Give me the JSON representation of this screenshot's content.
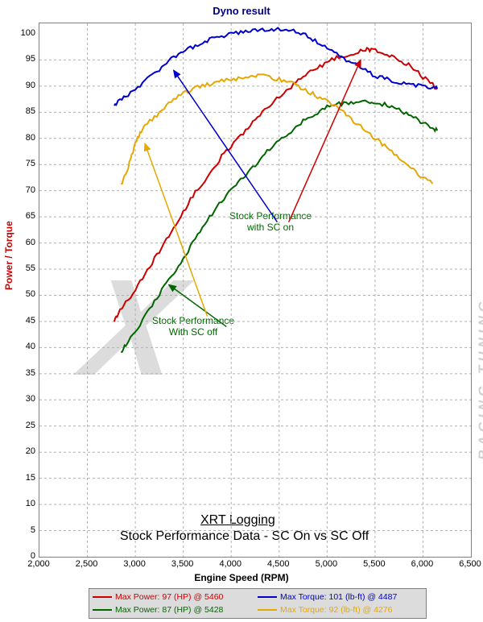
{
  "title": "Dyno result",
  "y_axis_label": "Power / Torque",
  "x_axis_label": "Engine Speed (RPM)",
  "plot": {
    "xlim": [
      2000,
      6500
    ],
    "ylim": [
      0,
      102
    ],
    "x_ticks": [
      2000,
      2500,
      3000,
      3500,
      4000,
      4500,
      5000,
      5500,
      6000,
      6500
    ],
    "x_tick_labels": [
      "2,000",
      "2,500",
      "3,000",
      "3,500",
      "4,000",
      "4,500",
      "5,000",
      "5,500",
      "6,000",
      "6,500"
    ],
    "y_ticks": [
      0,
      5,
      10,
      15,
      20,
      25,
      30,
      35,
      40,
      45,
      50,
      55,
      60,
      65,
      70,
      75,
      80,
      85,
      90,
      95,
      100
    ],
    "background_color": "#ffffff",
    "grid_color": "#b0b0b0",
    "border_color": "#808080"
  },
  "watermark_side": "RACING TUNING",
  "series": {
    "red_power_sc_on": {
      "label": "Max Power: 97 (HP) @ 5460",
      "color": "#cc0000",
      "line_width": 2,
      "points": [
        [
          2780,
          45
        ],
        [
          2820,
          46.5
        ],
        [
          2900,
          48.5
        ],
        [
          3000,
          51
        ],
        [
          3100,
          54
        ],
        [
          3200,
          57
        ],
        [
          3300,
          60
        ],
        [
          3400,
          63
        ],
        [
          3500,
          66
        ],
        [
          3600,
          69
        ],
        [
          3700,
          71.5
        ],
        [
          3800,
          74
        ],
        [
          3900,
          76.5
        ],
        [
          4000,
          78.5
        ],
        [
          4100,
          80.5
        ],
        [
          4200,
          82.5
        ],
        [
          4300,
          84.5
        ],
        [
          4400,
          86
        ],
        [
          4500,
          88
        ],
        [
          4600,
          89.5
        ],
        [
          4700,
          91
        ],
        [
          4800,
          92.5
        ],
        [
          4900,
          93.5
        ],
        [
          5000,
          94.5
        ],
        [
          5100,
          95.5
        ],
        [
          5200,
          96
        ],
        [
          5300,
          96.5
        ],
        [
          5400,
          97
        ],
        [
          5460,
          97
        ],
        [
          5550,
          96.5
        ],
        [
          5650,
          96
        ],
        [
          5750,
          95
        ],
        [
          5850,
          94
        ],
        [
          5950,
          92.5
        ],
        [
          6050,
          91
        ],
        [
          6150,
          89.5
        ]
      ]
    },
    "blue_torque_sc_on": {
      "label": "Max Torque: 101 (lb-ft) @ 4487",
      "color": "#0000cc",
      "line_width": 2,
      "points": [
        [
          2780,
          86
        ],
        [
          2820,
          87
        ],
        [
          2900,
          88
        ],
        [
          3000,
          89.5
        ],
        [
          3100,
          91
        ],
        [
          3200,
          92.5
        ],
        [
          3300,
          94
        ],
        [
          3400,
          95.5
        ],
        [
          3500,
          96.5
        ],
        [
          3600,
          97.5
        ],
        [
          3700,
          98.5
        ],
        [
          3800,
          99
        ],
        [
          3900,
          99.5
        ],
        [
          4000,
          100
        ],
        [
          4100,
          100.3
        ],
        [
          4200,
          100.5
        ],
        [
          4300,
          100.7
        ],
        [
          4400,
          100.9
        ],
        [
          4487,
          101
        ],
        [
          4600,
          100.7
        ],
        [
          4700,
          100.2
        ],
        [
          4800,
          99.5
        ],
        [
          4900,
          98.5
        ],
        [
          5000,
          97.5
        ],
        [
          5100,
          96.5
        ],
        [
          5200,
          95
        ],
        [
          5300,
          94
        ],
        [
          5400,
          93
        ],
        [
          5500,
          92
        ],
        [
          5600,
          91.5
        ],
        [
          5700,
          91
        ],
        [
          5800,
          90.5
        ],
        [
          5900,
          90.2
        ],
        [
          6000,
          90
        ],
        [
          6100,
          89.8
        ],
        [
          6150,
          89.5
        ]
      ]
    },
    "green_power_sc_off": {
      "label": "Max Power: 87 (HP) @ 5428",
      "color": "#006600",
      "line_width": 2,
      "points": [
        [
          2850,
          39
        ],
        [
          2900,
          40.5
        ],
        [
          3000,
          43
        ],
        [
          3100,
          46
        ],
        [
          3200,
          49
        ],
        [
          3300,
          51.5
        ],
        [
          3400,
          54
        ],
        [
          3500,
          57
        ],
        [
          3600,
          60
        ],
        [
          3700,
          63
        ],
        [
          3800,
          65.5
        ],
        [
          3900,
          68
        ],
        [
          4000,
          70
        ],
        [
          4100,
          72
        ],
        [
          4200,
          74
        ],
        [
          4300,
          76
        ],
        [
          4400,
          78
        ],
        [
          4500,
          79.5
        ],
        [
          4600,
          81
        ],
        [
          4700,
          82.5
        ],
        [
          4800,
          84
        ],
        [
          4900,
          85
        ],
        [
          5000,
          86
        ],
        [
          5100,
          86.5
        ],
        [
          5200,
          86.8
        ],
        [
          5300,
          87
        ],
        [
          5428,
          87
        ],
        [
          5500,
          86.8
        ],
        [
          5600,
          86.5
        ],
        [
          5700,
          86
        ],
        [
          5800,
          85
        ],
        [
          5900,
          84
        ],
        [
          6000,
          83
        ],
        [
          6100,
          82
        ],
        [
          6150,
          81.5
        ]
      ]
    },
    "orange_torque_sc_off": {
      "label": "Max Torque: 92 (lb-ft) @ 4276",
      "color": "#e6a800",
      "line_width": 2,
      "points": [
        [
          2850,
          71
        ],
        [
          2900,
          73
        ],
        [
          2950,
          76
        ],
        [
          3000,
          79
        ],
        [
          3050,
          81
        ],
        [
          3100,
          82.5
        ],
        [
          3200,
          84
        ],
        [
          3300,
          86
        ],
        [
          3400,
          87.5
        ],
        [
          3500,
          88.5
        ],
        [
          3600,
          89.5
        ],
        [
          3700,
          90
        ],
        [
          3800,
          90.5
        ],
        [
          3900,
          91
        ],
        [
          4000,
          91.3
        ],
        [
          4100,
          91.5
        ],
        [
          4200,
          91.8
        ],
        [
          4276,
          92
        ],
        [
          4400,
          91.7
        ],
        [
          4500,
          91.3
        ],
        [
          4600,
          90.8
        ],
        [
          4700,
          90
        ],
        [
          4800,
          89
        ],
        [
          4900,
          88
        ],
        [
          5000,
          87
        ],
        [
          5100,
          86
        ],
        [
          5200,
          84.5
        ],
        [
          5300,
          83
        ],
        [
          5400,
          81.5
        ],
        [
          5500,
          80
        ],
        [
          5600,
          78.5
        ],
        [
          5700,
          77
        ],
        [
          5800,
          75.5
        ],
        [
          5900,
          74
        ],
        [
          6000,
          72.5
        ],
        [
          6100,
          71.3
        ]
      ]
    }
  },
  "annotations": {
    "sc_on": {
      "text1": "Stock Performance",
      "text2": "with SC on"
    },
    "sc_off": {
      "text1": "Stock Performance",
      "text2": "With SC off"
    }
  },
  "caption": {
    "line1": "XRT Logging",
    "line2": "Stock Performance Data - SC On vs SC Off"
  },
  "annotation_arrows": {
    "red": {
      "from": [
        4600,
        64
      ],
      "to": [
        5350,
        95
      ],
      "color": "#cc0000"
    },
    "blue": {
      "from": [
        4480,
        64
      ],
      "to": [
        3400,
        93
      ],
      "color": "#0000cc"
    },
    "green": {
      "from": [
        3950,
        44
      ],
      "to": [
        3350,
        52
      ],
      "color": "#006600"
    },
    "orange": {
      "from": [
        3750,
        46
      ],
      "to": [
        3100,
        79
      ],
      "color": "#e6a800"
    }
  },
  "legend": {
    "background": "#dcdcdc",
    "items": [
      {
        "color": "#cc0000",
        "label": "Max Power: 97 (HP) @ 5460"
      },
      {
        "color": "#0000cc",
        "label": "Max Torque: 101 (lb-ft) @ 4487"
      },
      {
        "color": "#006600",
        "label": "Max Power: 87 (HP) @ 5428"
      },
      {
        "color": "#e6a800",
        "label": "Max Torque: 92 (lb-ft) @ 4276"
      }
    ]
  }
}
